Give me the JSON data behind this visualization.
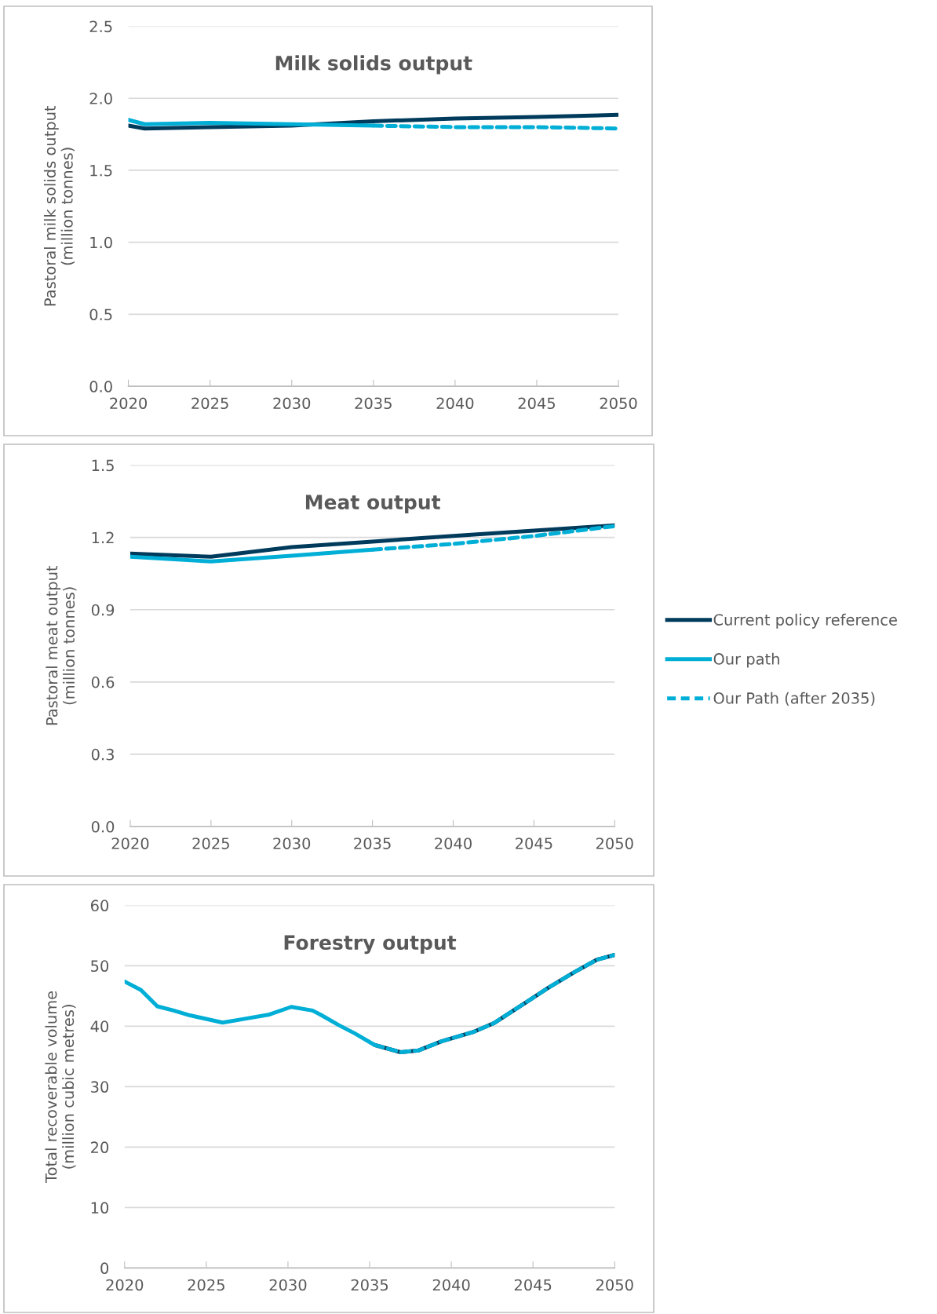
{
  "chart_data": [
    {
      "type": "line",
      "title": "Milk solids output",
      "ylabel": "Pastoral milk solids output\n(million tonnes)",
      "xlim": [
        2020,
        2050
      ],
      "xticks": [
        2020,
        2025,
        2030,
        2035,
        2040,
        2045,
        2050
      ],
      "ylim": [
        0,
        2.5
      ],
      "yticks": [
        {
          "value": 0,
          "label": "0.0"
        },
        0.5,
        {
          "value": 1,
          "label": "1.0"
        },
        1.5,
        {
          "value": 2,
          "label": "2.0"
        },
        2.5
      ],
      "grid": "y",
      "legend": false,
      "series": [
        {
          "color": "#003b5c",
          "x": [
            2020,
            2021,
            2025,
            2030,
            2035,
            2040,
            2045,
            2050
          ],
          "values": [
            1.81,
            1.79,
            1.8,
            1.81,
            1.84,
            1.86,
            1.87,
            1.885
          ]
        },
        {
          "color": "#00aed6",
          "x": [
            2020,
            2021,
            2025,
            2030,
            2035
          ],
          "values": [
            1.85,
            1.82,
            1.83,
            1.82,
            1.81
          ]
        },
        {
          "color": "#00aed6",
          "line_style": "dashed",
          "x": [
            2035,
            2040,
            2045,
            2050
          ],
          "values": [
            1.81,
            1.8,
            1.8,
            1.79
          ]
        }
      ]
    },
    {
      "type": "line",
      "title": "Meat output",
      "ylabel": "Pastoral meat output\n(million tonnes)",
      "xlim": [
        2020,
        2050
      ],
      "xticks": [
        2020,
        2025,
        2030,
        2035,
        2040,
        2045,
        2050
      ],
      "ylim": [
        0,
        1.5
      ],
      "yticks": [
        {
          "value": 0,
          "label": "0.0"
        },
        0.3,
        0.6,
        0.9,
        1.2,
        1.5
      ],
      "grid": "y",
      "legend": "right",
      "series": [
        {
          "name": "Current policy reference",
          "color": "#003b5c",
          "x": [
            2020,
            2025,
            2030,
            2035,
            2040,
            2045,
            2050
          ],
          "values": [
            1.133,
            1.12,
            1.16,
            1.183,
            1.206,
            1.228,
            1.25
          ]
        },
        {
          "name": "Our path",
          "color": "#00aed6",
          "x": [
            2020,
            2025,
            2030,
            2035
          ],
          "values": [
            1.12,
            1.1,
            1.124,
            1.149
          ]
        },
        {
          "name": "Our Path (after 2035)",
          "color": "#00aed6",
          "line_style": "dashed",
          "x": [
            2035,
            2040,
            2045,
            2050
          ],
          "values": [
            1.149,
            1.173,
            1.206,
            1.247
          ]
        }
      ]
    },
    {
      "type": "line",
      "title": "Forestry output",
      "ylabel": "Total recoverable volume\n(million cubic metres)",
      "xlim": [
        2020,
        2050
      ],
      "xticks": [
        2020,
        2025,
        2030,
        2035,
        2040,
        2045,
        2050
      ],
      "ylim": [
        0,
        60
      ],
      "yticks": [
        0,
        10,
        20,
        30,
        40,
        50,
        60
      ],
      "grid": "y",
      "legend": false,
      "series": [
        {
          "color": "#003b5c",
          "x": [
            2035.3,
            2036.9,
            2038,
            2039.4,
            2041.4,
            2042.6,
            2044.6,
            2045.9,
            2047.5,
            2048.9,
            2050
          ],
          "values": [
            36.9,
            35.7,
            36.0,
            37.5,
            39.1,
            40.5,
            44.0,
            46.3,
            48.9,
            51.0,
            51.8
          ]
        },
        {
          "color": "#00aed6",
          "x": [
            2020,
            2021,
            2022,
            2023,
            2024,
            2026,
            2027.3,
            2028.8,
            2030.2,
            2031.5,
            2032,
            2033.1,
            2034.1,
            2035.3
          ],
          "values": [
            47.4,
            46.0,
            43.3,
            42.6,
            41.8,
            40.6,
            41.2,
            41.9,
            43.2,
            42.6,
            41.9,
            40.2,
            38.8,
            36.9
          ]
        },
        {
          "color": "#00aed6",
          "line_style": "dashed",
          "x": [
            2035.3,
            2036.9,
            2038,
            2039.4,
            2041.4,
            2042.6,
            2044.6,
            2045.9,
            2047.5,
            2048.9,
            2050
          ],
          "values": [
            36.9,
            35.7,
            36.0,
            37.5,
            39.1,
            40.5,
            44.0,
            46.3,
            48.9,
            51.0,
            51.8
          ]
        }
      ]
    }
  ]
}
